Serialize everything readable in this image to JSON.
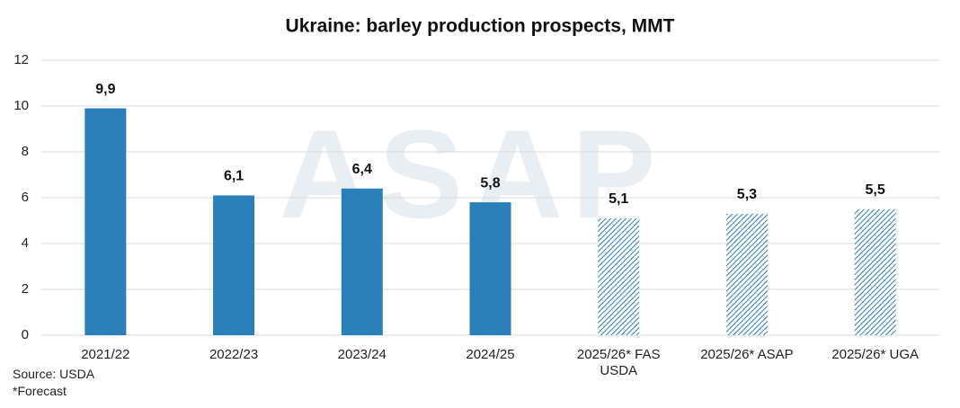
{
  "chart_data": {
    "type": "bar",
    "title": "Ukraine: barley production prospects, MMT",
    "categories": [
      "2021/22",
      "2022/23",
      "2023/24",
      "2024/25",
      "2025/26* FAS USDA",
      "2025/26* ASAP",
      "2025/26* UGA"
    ],
    "values": [
      9.9,
      6.1,
      6.4,
      5.8,
      5.1,
      5.3,
      5.5
    ],
    "value_labels": [
      "9,9",
      "6,1",
      "6,4",
      "5,8",
      "5,1",
      "5,3",
      "5,5"
    ],
    "hatched": [
      false,
      false,
      false,
      false,
      true,
      true,
      true
    ],
    "color": "#2a7fb8",
    "ylim": [
      0,
      12
    ],
    "yticks": [
      0,
      2,
      4,
      6,
      8,
      10,
      12
    ],
    "grid": true,
    "watermark": "ASAP",
    "source": "Source: USDA",
    "footnote": "*Forecast"
  }
}
